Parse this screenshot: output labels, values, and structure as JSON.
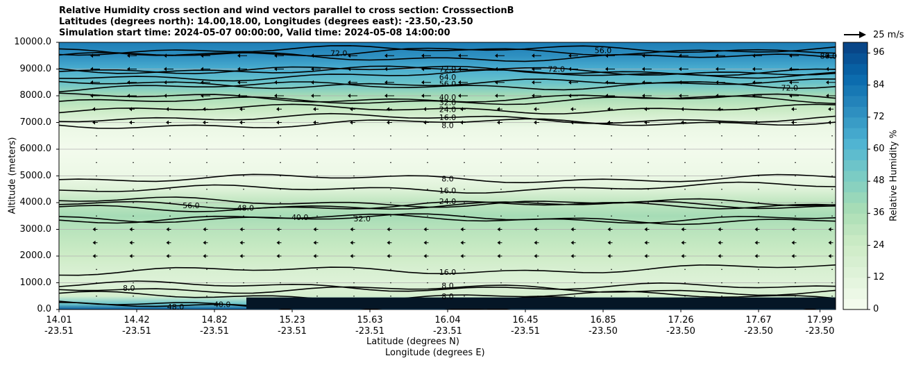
{
  "title": {
    "line1": "Relative Humidity cross section and wind vectors parallel to cross section: CrosssectionB",
    "line2": "Latitudes (degrees north): 14.00,18.00, Longitudes (degrees east): -23.50,-23.50",
    "line3": "Simulation start time: 2024-05-07 00:00:00, Valid time: 2024-05-08 14:00:00"
  },
  "chart_data": {
    "type": "heatmap",
    "ylabel": "Altitude (meters)",
    "xlabel_lat": "Latitude (degrees N)",
    "xlabel_lon": "Longitude (degrees E)",
    "ylim": [
      0,
      10000
    ],
    "yticks": [
      "0.0",
      "1000.0",
      "2000.0",
      "3000.0",
      "4000.0",
      "5000.0",
      "6000.0",
      "7000.0",
      "8000.0",
      "9000.0",
      "10000.0"
    ],
    "xtick_positions": [
      0,
      1,
      2,
      3,
      4,
      5,
      6,
      7,
      8,
      9,
      9.79
    ],
    "xticks": [
      {
        "lat": "14.01",
        "lon": "-23.51"
      },
      {
        "lat": "14.42",
        "lon": "-23.51"
      },
      {
        "lat": "14.82",
        "lon": "-23.51"
      },
      {
        "lat": "15.23",
        "lon": "-23.51"
      },
      {
        "lat": "15.63",
        "lon": "-23.51"
      },
      {
        "lat": "16.04",
        "lon": "-23.51"
      },
      {
        "lat": "16.45",
        "lon": "-23.51"
      },
      {
        "lat": "16.85",
        "lon": "-23.50"
      },
      {
        "lat": "17.26",
        "lon": "-23.50"
      },
      {
        "lat": "17.67",
        "lon": "-23.50"
      },
      {
        "lat": "17.99",
        "lon": "-23.50"
      }
    ],
    "colorbar": {
      "label": "Relative Humidity %",
      "range": [
        0,
        100
      ],
      "ticks": [
        "0",
        "12",
        "24",
        "36",
        "48",
        "60",
        "72",
        "84",
        "96"
      ],
      "colormap": "GnBu",
      "colors": [
        "#f7fcf0",
        "#e0f3db",
        "#ccebc5",
        "#a8ddb5",
        "#7bccc4",
        "#4eb3d3",
        "#2b8cbe",
        "#0868ac",
        "#084081"
      ]
    },
    "grid": "horizontal",
    "quiver_key": "25 m/s",
    "rh_profile": [
      {
        "alt": 0,
        "rh": 92
      },
      {
        "alt": 200,
        "rh": 55
      },
      {
        "alt": 500,
        "rh": 20
      },
      {
        "alt": 1000,
        "rh": 14
      },
      {
        "alt": 1500,
        "rh": 18
      },
      {
        "alt": 2000,
        "rh": 24
      },
      {
        "alt": 2500,
        "rh": 28
      },
      {
        "alt": 3000,
        "rh": 32
      },
      {
        "alt": 3500,
        "rh": 38
      },
      {
        "alt": 4000,
        "rh": 30
      },
      {
        "alt": 4500,
        "rh": 14
      },
      {
        "alt": 5000,
        "rh": 6
      },
      {
        "alt": 6000,
        "rh": 2
      },
      {
        "alt": 6800,
        "rh": 6
      },
      {
        "alt": 7500,
        "rh": 26
      },
      {
        "alt": 8000,
        "rh": 38
      },
      {
        "alt": 8500,
        "rh": 55
      },
      {
        "alt": 9000,
        "rh": 64
      },
      {
        "alt": 9500,
        "rh": 74
      },
      {
        "alt": 10000,
        "rh": 80
      }
    ],
    "contours": [
      {
        "level": "8.0",
        "label_alt": 6900,
        "label_x": 5.0
      },
      {
        "level": "16.0",
        "label_alt": 7200,
        "label_x": 5.0
      },
      {
        "level": "24.0",
        "label_alt": 7500,
        "label_x": 5.0
      },
      {
        "level": "32.0",
        "label_alt": 7750,
        "label_x": 5.0
      },
      {
        "level": "40.0",
        "label_alt": 7950,
        "label_x": 5.0
      },
      {
        "level": "56.0",
        "label_alt": 8450,
        "label_x": 5.0
      },
      {
        "level": "64.0",
        "label_alt": 8700,
        "label_x": 5.0
      },
      {
        "level": "72.0",
        "label_alt": 9000,
        "label_x": 5.0
      },
      {
        "level": "8.0",
        "label_alt": 4900,
        "label_x": 5.0
      },
      {
        "level": "16.0",
        "label_alt": 4450,
        "label_x": 5.0
      },
      {
        "level": "24.0",
        "label_alt": 4050,
        "label_x": 5.0
      },
      {
        "level": "56.0",
        "label_alt": 3900,
        "label_x": 1.7
      },
      {
        "level": "48.0",
        "label_alt": 3800,
        "label_x": 2.4
      },
      {
        "level": "40.0",
        "label_alt": 3450,
        "label_x": 3.1
      },
      {
        "level": "32.0",
        "label_alt": 3400,
        "label_x": 3.9
      },
      {
        "level": "16.0",
        "label_alt": 1400,
        "label_x": 5.0
      },
      {
        "level": "8.0",
        "label_alt": 900,
        "label_x": 5.0
      },
      {
        "level": "8.0",
        "label_alt": 500,
        "label_x": 5.0
      },
      {
        "level": "72.0",
        "label_alt": 9600,
        "label_x": 3.6
      },
      {
        "level": "72.0",
        "label_alt": 9000,
        "label_x": 6.4
      },
      {
        "level": "56.0",
        "label_alt": 9700,
        "label_x": 7.0
      },
      {
        "level": "72.0",
        "label_alt": 8300,
        "label_x": 9.4
      },
      {
        "level": "80.0",
        "label_alt": 9500,
        "label_x": 9.9
      },
      {
        "level": "48.0",
        "label_alt": 100,
        "label_x": 1.5
      },
      {
        "level": "40.0",
        "label_alt": 200,
        "label_x": 2.1
      },
      {
        "level": "8.0",
        "label_alt": 800,
        "label_x": 0.9
      }
    ]
  }
}
